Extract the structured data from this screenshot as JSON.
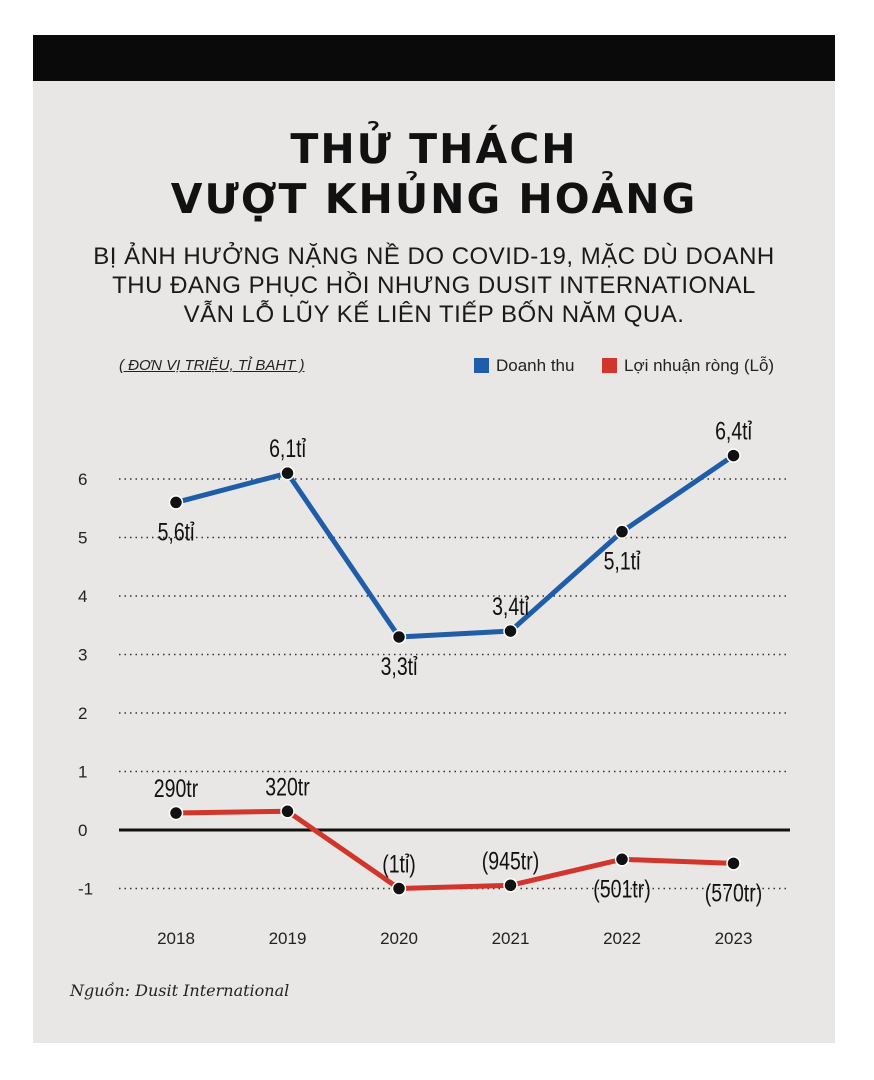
{
  "header": {
    "title_line1": "THỬ THÁCH",
    "title_line2": "VƯỢT KHỦNG HOẢNG",
    "subtitle_line1": "BỊ ẢNH HƯỞNG NẶNG NỀ DO COVID-19, MẶC DÙ DOANH",
    "subtitle_line2": "THU ĐANG PHỤC HỒI NHƯNG DUSIT INTERNATIONAL",
    "subtitle_line3": "VẪN LỖ LŨY KẾ LIÊN TIẾP BỐN NĂM QUA."
  },
  "unit_note": "( ĐƠN VỊ TRIỆU, TỈ BAHT )",
  "source": "Nguồn: Dusit International",
  "colors": {
    "revenue": "#1f5da8",
    "net_profit": "#d2352b",
    "background": "#e9e7e5",
    "bar": "#0a0a0a"
  },
  "chart_data": {
    "type": "line",
    "x": [
      "2018",
      "2019",
      "2020",
      "2021",
      "2022",
      "2023"
    ],
    "series": [
      {
        "name": "Doanh thu",
        "values": [
          5.6,
          6.1,
          3.3,
          3.4,
          5.1,
          6.4
        ],
        "labels": [
          "5,6tỉ",
          "6,1tỉ",
          "3,3tỉ",
          "3,4tỉ",
          "5,1tỉ",
          "6,4tỉ"
        ]
      },
      {
        "name": "Lợi nhuận ròng (Lỗ)",
        "values": [
          0.29,
          0.32,
          -1.0,
          -0.945,
          -0.501,
          -0.57
        ],
        "labels": [
          "290tr",
          "320tr",
          "(1tỉ)",
          "(945tr)",
          "(501tr)",
          "(570tr)"
        ]
      }
    ],
    "yticks": [
      "6",
      "5",
      "4",
      "3",
      "2",
      "1",
      "0",
      "-1"
    ],
    "ylim": [
      -1,
      6
    ],
    "grid": true,
    "legend_position": "top-right"
  }
}
